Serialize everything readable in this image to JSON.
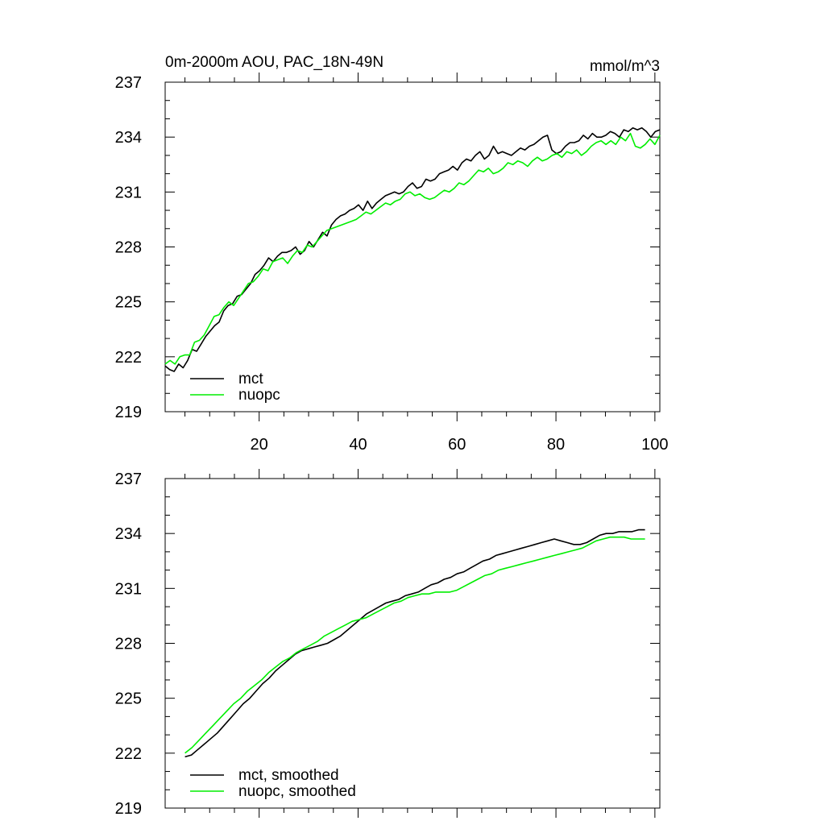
{
  "chart_data": [
    {
      "type": "line",
      "title": "0m-2000m AOU, PAC_18N-49N",
      "units": "mmol/m^3",
      "xlim": [
        1,
        101
      ],
      "ylim": [
        219,
        237
      ],
      "yticks": [
        219,
        222,
        225,
        228,
        231,
        234,
        237
      ],
      "xticks": [
        20,
        40,
        60,
        80,
        100
      ],
      "legend_position": "bottom-left",
      "series": [
        {
          "name": "mct",
          "color": "#000000",
          "x_start": 1,
          "values": [
            221.5,
            221.3,
            221.2,
            221.6,
            221.4,
            221.8,
            222.4,
            222.3,
            222.7,
            223.1,
            223.4,
            223.7,
            223.9,
            224.5,
            224.8,
            224.9,
            225.3,
            225.4,
            225.7,
            226.0,
            226.5,
            226.7,
            227.0,
            227.4,
            227.2,
            227.5,
            227.7,
            227.7,
            227.8,
            228.0,
            227.6,
            227.8,
            228.3,
            228.0,
            228.4,
            228.8,
            228.6,
            229.2,
            229.5,
            229.7,
            229.8,
            230.0,
            230.1,
            230.3,
            230.0,
            230.5,
            230.1,
            230.4,
            230.6,
            230.8,
            230.9,
            231.0,
            230.9,
            231.0,
            231.3,
            231.5,
            231.2,
            231.3,
            231.7,
            231.6,
            231.7,
            232.0,
            232.1,
            232.2,
            232.4,
            232.2,
            232.6,
            232.8,
            232.7,
            233.0,
            233.2,
            232.8,
            233.0,
            233.5,
            233.1,
            233.2,
            233.1,
            233.0,
            233.2,
            233.4,
            233.3,
            233.5,
            233.6,
            233.8,
            234.0,
            234.1,
            233.3,
            233.1,
            233.2,
            233.5,
            233.7,
            233.7,
            233.8,
            234.1,
            233.9,
            234.2,
            234.0,
            234.0,
            234.1,
            234.3,
            234.2,
            234.0,
            234.4,
            234.3,
            234.5,
            234.4,
            234.5,
            234.3,
            234.0,
            234.3,
            234.4
          ],
          "x_end": 101
        },
        {
          "name": "nuopc",
          "color": "#00ee00",
          "x_start": 1,
          "values": [
            221.6,
            221.8,
            221.6,
            222.0,
            222.1,
            222.1,
            222.8,
            222.9,
            223.2,
            223.7,
            224.2,
            224.3,
            224.7,
            225.0,
            224.8,
            225.2,
            225.6,
            226.0,
            226.1,
            226.4,
            226.8,
            226.7,
            227.2,
            227.3,
            227.4,
            227.1,
            227.5,
            227.8,
            227.7,
            228.1,
            228.0,
            228.3,
            228.6,
            228.9,
            229.0,
            229.1,
            229.2,
            229.3,
            229.4,
            229.5,
            229.7,
            229.9,
            229.8,
            230.0,
            230.2,
            230.4,
            230.3,
            230.5,
            230.6,
            230.9,
            231.0,
            230.8,
            230.9,
            230.7,
            230.6,
            230.7,
            230.9,
            231.1,
            231.0,
            231.2,
            231.5,
            231.4,
            231.6,
            231.9,
            232.2,
            232.1,
            232.3,
            232.0,
            232.1,
            232.3,
            232.6,
            232.5,
            232.7,
            232.6,
            232.4,
            232.7,
            232.9,
            232.7,
            232.8,
            233.0,
            233.1,
            232.9,
            233.2,
            233.1,
            233.3,
            233.0,
            233.2,
            233.5,
            233.7,
            233.8,
            233.6,
            233.8,
            233.6,
            234.0,
            233.8,
            234.2,
            233.5,
            233.4,
            233.6,
            233.9,
            233.6,
            234.1
          ],
          "x_end": 101
        }
      ]
    },
    {
      "type": "line",
      "title": "",
      "units": "",
      "xlim": [
        1,
        101
      ],
      "ylim": [
        219,
        237
      ],
      "yticks": [
        219,
        222,
        225,
        228,
        231,
        234,
        237
      ],
      "legend_position": "bottom-left",
      "series": [
        {
          "name": "mct, smoothed",
          "color": "#000000",
          "x_start": 5,
          "values": [
            221.8,
            221.9,
            222.2,
            222.5,
            222.8,
            223.1,
            223.5,
            223.9,
            224.3,
            224.7,
            225.0,
            225.4,
            225.8,
            226.1,
            226.5,
            226.8,
            227.1,
            227.4,
            227.6,
            227.7,
            227.8,
            227.9,
            228.0,
            228.2,
            228.4,
            228.7,
            229.0,
            229.3,
            229.6,
            229.8,
            230.0,
            230.2,
            230.3,
            230.4,
            230.6,
            230.7,
            230.8,
            231.0,
            231.2,
            231.3,
            231.5,
            231.6,
            231.8,
            231.9,
            232.1,
            232.3,
            232.5,
            232.6,
            232.8,
            232.9,
            233.0,
            233.1,
            233.2,
            233.3,
            233.4,
            233.5,
            233.6,
            233.7,
            233.6,
            233.5,
            233.4,
            233.4,
            233.5,
            233.7,
            233.9,
            234.0,
            234.0,
            234.1,
            234.1,
            234.1,
            234.2,
            234.2
          ],
          "x_end": 98
        },
        {
          "name": "nuopc, smoothed",
          "color": "#00ee00",
          "x_start": 5,
          "values": [
            222.0,
            222.3,
            222.7,
            223.1,
            223.5,
            223.9,
            224.3,
            224.7,
            225.0,
            225.4,
            225.7,
            226.0,
            226.4,
            226.7,
            227.0,
            227.2,
            227.5,
            227.7,
            227.9,
            228.1,
            228.4,
            228.6,
            228.8,
            229.0,
            229.2,
            229.3,
            229.4,
            229.6,
            229.8,
            230.0,
            230.2,
            230.3,
            230.5,
            230.6,
            230.7,
            230.7,
            230.8,
            230.8,
            230.8,
            230.9,
            231.1,
            231.3,
            231.5,
            231.7,
            231.8,
            232.0,
            232.1,
            232.2,
            232.3,
            232.4,
            232.5,
            232.6,
            232.7,
            232.8,
            232.9,
            233.0,
            233.1,
            233.2,
            233.4,
            233.6,
            233.7,
            233.8,
            233.8,
            233.8,
            233.7,
            233.7,
            233.7
          ],
          "x_end": 98
        }
      ]
    }
  ]
}
